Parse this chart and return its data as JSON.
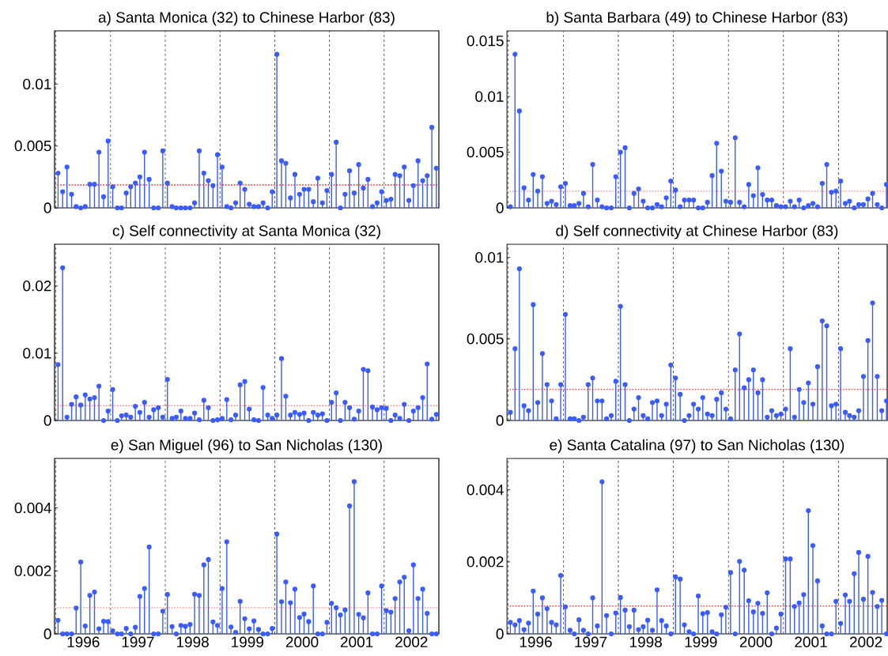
{
  "chart_data": [
    {
      "type": "lollipop",
      "title": "a) Santa Monica (32) to Chinese Harbor (83)",
      "color": "#3a5cff",
      "marker": "circle",
      "tick_labels": "y",
      "x": [
        "1996-01-15",
        "1996-02-15",
        "1996-03-15",
        "1996-04-15",
        "1996-05-15",
        "1996-06-15",
        "1996-07-15",
        "1996-08-15",
        "1996-09-15",
        "1996-10-15",
        "1996-11-15",
        "1996-12-15",
        "1997-01-15",
        "1997-02-15",
        "1997-03-15",
        "1997-04-15",
        "1997-05-15",
        "1997-06-15",
        "1997-07-15",
        "1997-08-15",
        "1997-09-15",
        "1997-10-15",
        "1997-11-15",
        "1997-12-15",
        "1998-01-15",
        "1998-02-15",
        "1998-03-15",
        "1998-04-15",
        "1998-05-15",
        "1998-06-15",
        "1998-07-15",
        "1998-08-15",
        "1998-09-15",
        "1998-10-15",
        "1998-11-15",
        "1998-12-15",
        "1999-01-15",
        "1999-02-15",
        "1999-03-15",
        "1999-04-15",
        "1999-05-15",
        "1999-06-15",
        "1999-07-15",
        "1999-08-15",
        "1999-09-15",
        "1999-10-15",
        "1999-11-15",
        "1999-12-15",
        "2000-01-15",
        "2000-02-15",
        "2000-03-15",
        "2000-04-15",
        "2000-05-15",
        "2000-06-15",
        "2000-07-15",
        "2000-08-15",
        "2000-09-15",
        "2000-10-15",
        "2000-11-15",
        "2000-12-15",
        "2001-01-15",
        "2001-02-15",
        "2001-03-15",
        "2001-04-15",
        "2001-05-15",
        "2001-06-15",
        "2001-07-15",
        "2001-08-15",
        "2001-09-15",
        "2001-10-15",
        "2001-11-15",
        "2001-12-15",
        "2002-01-15",
        "2002-02-15",
        "2002-03-15",
        "2002-04-15",
        "2002-05-15",
        "2002-06-15",
        "2002-07-15",
        "2002-08-15",
        "2002-09-15",
        "2002-10-15",
        "2002-11-15",
        "2002-12-15"
      ],
      "values": [
        0.0028,
        0.0013,
        0.0033,
        0.0011,
        0.0001,
        0,
        0.0001,
        0.0019,
        0.0019,
        0.0045,
        0.0009,
        0.0054,
        0.0017,
        0,
        0,
        0.0012,
        0.0017,
        0.002,
        0.0025,
        0.0045,
        0.0023,
        0,
        0,
        0.0046,
        0.002,
        0.0001,
        0,
        0,
        0,
        0,
        0.0004,
        0.0046,
        0.0028,
        0.0022,
        0.0018,
        0.0043,
        0.0033,
        0.0001,
        0,
        0.0004,
        0.002,
        0.0015,
        0.0003,
        0.0001,
        0.0001,
        0.0004,
        0,
        0.0013,
        0.0124,
        0.0038,
        0.0036,
        0.0008,
        0.0027,
        0.0011,
        0.0015,
        0.0015,
        0.0005,
        0.0024,
        0.0004,
        0.0014,
        0.0027,
        0.0053,
        0,
        0.0011,
        0.003,
        0.0012,
        0.0035,
        0.0016,
        0.0023,
        0.0001,
        0.0004,
        0.0013,
        0.0006,
        0.0007,
        0.0027,
        0.0026,
        0.0033,
        0.0006,
        0.0018,
        0.0038,
        0.0022,
        0.0026,
        0.0065,
        0.0032
      ],
      "xlim": [
        "1995-12-23",
        "2003-01-01"
      ],
      "ylim": [
        0,
        0.0143
      ],
      "yticks": [
        0,
        0.005,
        0.01
      ],
      "ref_lines": [
        {
          "axis": "x",
          "value": "1996-01-01",
          "color": "#555555",
          "line_style": "dashed"
        },
        {
          "axis": "x",
          "value": "1997-01-01",
          "color": "#555555",
          "line_style": "dashed"
        },
        {
          "axis": "x",
          "value": "1998-01-01",
          "color": "#555555",
          "line_style": "dashed"
        },
        {
          "axis": "x",
          "value": "1999-01-01",
          "color": "#555555",
          "line_style": "dashed"
        },
        {
          "axis": "x",
          "value": "2000-01-01",
          "color": "#555555",
          "line_style": "dashed"
        },
        {
          "axis": "x",
          "value": "2001-01-01",
          "color": "#555555",
          "line_style": "dashed"
        },
        {
          "axis": "x",
          "value": "2002-01-01",
          "color": "#555555",
          "line_style": "dashed"
        },
        {
          "axis": "y",
          "value": 0.00185,
          "color": "#ff1a1a",
          "line_style": "dotted"
        }
      ]
    },
    {
      "type": "lollipop",
      "title": "b) Santa Barbara (49) to Chinese Harbor (83)",
      "color": "#3a5cff",
      "marker": "circle",
      "tick_labels": "y",
      "x": [
        "1996-01-15",
        "1996-02-15",
        "1996-03-15",
        "1996-04-15",
        "1996-05-15",
        "1996-06-15",
        "1996-07-15",
        "1996-08-15",
        "1996-09-15",
        "1996-10-15",
        "1996-11-15",
        "1996-12-15",
        "1997-01-15",
        "1997-02-15",
        "1997-03-15",
        "1997-04-15",
        "1997-05-15",
        "1997-06-15",
        "1997-07-15",
        "1997-08-15",
        "1997-09-15",
        "1997-10-15",
        "1997-11-15",
        "1997-12-15",
        "1998-01-15",
        "1998-02-15",
        "1998-03-15",
        "1998-04-15",
        "1998-05-15",
        "1998-06-15",
        "1998-07-15",
        "1998-08-15",
        "1998-09-15",
        "1998-10-15",
        "1998-11-15",
        "1998-12-15",
        "1999-01-15",
        "1999-02-15",
        "1999-03-15",
        "1999-04-15",
        "1999-05-15",
        "1999-06-15",
        "1999-07-15",
        "1999-08-15",
        "1999-09-15",
        "1999-10-15",
        "1999-11-15",
        "1999-12-15",
        "2000-01-15",
        "2000-02-15",
        "2000-03-15",
        "2000-04-15",
        "2000-05-15",
        "2000-06-15",
        "2000-07-15",
        "2000-08-15",
        "2000-09-15",
        "2000-10-15",
        "2000-11-15",
        "2000-12-15",
        "2001-01-15",
        "2001-02-15",
        "2001-03-15",
        "2001-04-15",
        "2001-05-15",
        "2001-06-15",
        "2001-07-15",
        "2001-08-15",
        "2001-09-15",
        "2001-10-15",
        "2001-11-15",
        "2001-12-15",
        "2002-01-15",
        "2002-02-15",
        "2002-03-15",
        "2002-04-15",
        "2002-05-15",
        "2002-06-15",
        "2002-07-15",
        "2002-08-15",
        "2002-09-15",
        "2002-10-15",
        "2002-11-15"
      ],
      "values": [
        0.0001,
        0.0138,
        0.0087,
        0.0018,
        0.0007,
        0.003,
        0.0015,
        0.0028,
        0.0004,
        0.0006,
        0.0003,
        0.0019,
        0.0022,
        0.0002,
        0.0002,
        0.0004,
        0.0013,
        0.0001,
        0.0039,
        0.0007,
        0.0001,
        0,
        0,
        0.0028,
        0.005,
        0.0054,
        0,
        0.0013,
        0.0017,
        0.0006,
        0,
        0,
        0.0003,
        0.0001,
        0.0009,
        0.0024,
        0.0016,
        0.0001,
        0.0007,
        0.0007,
        0.0007,
        0,
        0,
        0.0005,
        0.0029,
        0.0058,
        0.0033,
        0.0006,
        0.0005,
        0.0063,
        0.0005,
        0.0001,
        0.0021,
        0.0011,
        0.0036,
        0.0012,
        0.0007,
        0.0007,
        0.0002,
        0.0001,
        0.0001,
        0.0006,
        0.0001,
        0.0007,
        0,
        0.0002,
        0.0004,
        0.0001,
        0.0022,
        0.0039,
        0.0014,
        0.0015,
        0.0024,
        0.0004,
        0.0006,
        0,
        0.0003,
        0.0003,
        0.0008,
        0.0013,
        0.0003,
        0,
        0.0021
      ],
      "xlim": [
        "1995-12-23",
        "2002-11-20"
      ],
      "ylim": [
        0,
        0.0159
      ],
      "yticks": [
        0,
        0.005,
        0.01,
        0.015
      ],
      "ref_lines": [
        {
          "axis": "x",
          "value": "1996-01-01",
          "color": "#555555",
          "line_style": "dashed"
        },
        {
          "axis": "x",
          "value": "1997-01-01",
          "color": "#555555",
          "line_style": "dashed"
        },
        {
          "axis": "x",
          "value": "1998-01-01",
          "color": "#555555",
          "line_style": "dashed"
        },
        {
          "axis": "x",
          "value": "1999-01-01",
          "color": "#555555",
          "line_style": "dashed"
        },
        {
          "axis": "x",
          "value": "2000-01-01",
          "color": "#555555",
          "line_style": "dashed"
        },
        {
          "axis": "x",
          "value": "2001-01-01",
          "color": "#555555",
          "line_style": "dashed"
        },
        {
          "axis": "x",
          "value": "2002-01-01",
          "color": "#555555",
          "line_style": "dashed"
        },
        {
          "axis": "y",
          "value": 0.0015,
          "color": "#ffaaaa",
          "line_style": "dotted"
        }
      ]
    },
    {
      "type": "lollipop",
      "title": "c) Self connectivity at Santa Monica (32)",
      "color": "#3a5cff",
      "marker": "circle",
      "tick_labels": "y",
      "x": [
        "1996-01-15",
        "1996-02-15",
        "1996-03-15",
        "1996-04-15",
        "1996-05-15",
        "1996-06-15",
        "1996-07-15",
        "1996-08-15",
        "1996-09-15",
        "1996-10-15",
        "1996-11-15",
        "1996-12-15",
        "1997-01-15",
        "1997-02-15",
        "1997-03-15",
        "1997-04-15",
        "1997-05-15",
        "1997-06-15",
        "1997-07-15",
        "1997-08-15",
        "1997-09-15",
        "1997-10-15",
        "1997-11-15",
        "1997-12-15",
        "1998-01-15",
        "1998-02-15",
        "1998-03-15",
        "1998-04-15",
        "1998-05-15",
        "1998-06-15",
        "1998-07-15",
        "1998-08-15",
        "1998-09-15",
        "1998-10-15",
        "1998-11-15",
        "1998-12-15",
        "1999-01-15",
        "1999-02-15",
        "1999-03-15",
        "1999-04-15",
        "1999-05-15",
        "1999-06-15",
        "1999-07-15",
        "1999-08-15",
        "1999-09-15",
        "1999-10-15",
        "1999-11-15",
        "1999-12-15",
        "2000-01-15",
        "2000-02-15",
        "2000-03-15",
        "2000-04-15",
        "2000-05-15",
        "2000-06-15",
        "2000-07-15",
        "2000-08-15",
        "2000-09-15",
        "2000-10-15",
        "2000-11-15",
        "2000-12-15",
        "2001-01-15",
        "2001-02-15",
        "2001-03-15",
        "2001-04-15",
        "2001-05-15",
        "2001-06-15",
        "2001-07-15",
        "2001-08-15",
        "2001-09-15",
        "2001-10-15",
        "2001-11-15",
        "2001-12-15",
        "2002-01-15",
        "2002-02-15",
        "2002-03-15",
        "2002-04-15",
        "2002-05-15",
        "2002-06-15",
        "2002-07-15",
        "2002-08-15",
        "2002-09-15",
        "2002-10-15",
        "2002-11-15",
        "2002-12-15"
      ],
      "values": [
        0.0083,
        0.0227,
        0.0005,
        0.0024,
        0.0035,
        0.0023,
        0.0038,
        0.0032,
        0.0034,
        0.0051,
        0,
        0.0014,
        0.0046,
        0,
        0.0007,
        0.0008,
        0.0005,
        0.0021,
        0.0012,
        0.0027,
        0.0005,
        0.0016,
        0.0019,
        0.0005,
        0.0061,
        0.0003,
        0.0005,
        0.0014,
        0.0003,
        0.0003,
        0.0011,
        0.0001,
        0.003,
        0.0019,
        0,
        0.0001,
        0.0003,
        0.0031,
        0.0001,
        0.0008,
        0.0053,
        0.0058,
        0.0017,
        0.0001,
        0,
        0.0049,
        0.0008,
        0.0003,
        0.0008,
        0.0092,
        0.0036,
        0.0008,
        0.0012,
        0.0009,
        0.0011,
        0,
        0.0012,
        0.0008,
        0.001,
        0,
        0.0027,
        0.0041,
        0,
        0.0027,
        0.0019,
        0.0002,
        0.0014,
        0.0076,
        0.0074,
        0.002,
        0.0016,
        0.0019,
        0.0018,
        0,
        0.0008,
        0.0003,
        0.0024,
        0,
        0.0014,
        0.0019,
        0.0034,
        0.0084,
        0.0002,
        0.0009
      ],
      "xlim": [
        "1995-12-23",
        "2003-01-01"
      ],
      "ylim": [
        0,
        0.0262
      ],
      "yticks": [
        0,
        0.01,
        0.02
      ],
      "ref_lines": [
        {
          "axis": "x",
          "value": "1996-01-01",
          "color": "#555555",
          "line_style": "dashed"
        },
        {
          "axis": "x",
          "value": "1997-01-01",
          "color": "#555555",
          "line_style": "dashed"
        },
        {
          "axis": "x",
          "value": "1998-01-01",
          "color": "#555555",
          "line_style": "dashed"
        },
        {
          "axis": "x",
          "value": "1999-01-01",
          "color": "#555555",
          "line_style": "dashed"
        },
        {
          "axis": "x",
          "value": "2000-01-01",
          "color": "#555555",
          "line_style": "dashed"
        },
        {
          "axis": "x",
          "value": "2001-01-01",
          "color": "#555555",
          "line_style": "dashed"
        },
        {
          "axis": "x",
          "value": "2002-01-01",
          "color": "#555555",
          "line_style": "dashed"
        },
        {
          "axis": "y",
          "value": 0.0022,
          "color": "#ff8888",
          "line_style": "dotted"
        }
      ]
    },
    {
      "type": "lollipop",
      "title": "d) Self connectivity at Chinese Harbor (83)",
      "color": "#3a5cff",
      "marker": "circle",
      "tick_labels": "y",
      "x": [
        "1996-01-15",
        "1996-02-15",
        "1996-03-15",
        "1996-04-15",
        "1996-05-15",
        "1996-06-15",
        "1996-07-15",
        "1996-08-15",
        "1996-09-15",
        "1996-10-15",
        "1996-11-15",
        "1996-12-15",
        "1997-01-15",
        "1997-02-15",
        "1997-03-15",
        "1997-04-15",
        "1997-05-15",
        "1997-06-15",
        "1997-07-15",
        "1997-08-15",
        "1997-09-15",
        "1997-10-15",
        "1997-11-15",
        "1997-12-15",
        "1998-01-15",
        "1998-02-15",
        "1998-03-15",
        "1998-04-15",
        "1998-05-15",
        "1998-06-15",
        "1998-07-15",
        "1998-08-15",
        "1998-09-15",
        "1998-10-15",
        "1998-11-15",
        "1998-12-15",
        "1999-01-15",
        "1999-02-15",
        "1999-03-15",
        "1999-04-15",
        "1999-05-15",
        "1999-06-15",
        "1999-07-15",
        "1999-08-15",
        "1999-09-15",
        "1999-10-15",
        "1999-11-15",
        "1999-12-15",
        "2000-01-15",
        "2000-02-15",
        "2000-03-15",
        "2000-04-15",
        "2000-05-15",
        "2000-06-15",
        "2000-07-15",
        "2000-08-15",
        "2000-09-15",
        "2000-10-15",
        "2000-11-15",
        "2000-12-15",
        "2001-01-15",
        "2001-02-15",
        "2001-03-15",
        "2001-04-15",
        "2001-05-15",
        "2001-06-15",
        "2001-07-15",
        "2001-08-15",
        "2001-09-15",
        "2001-10-15",
        "2001-11-15",
        "2001-12-15",
        "2002-01-15",
        "2002-02-15",
        "2002-03-15",
        "2002-04-15",
        "2002-05-15",
        "2002-06-15",
        "2002-07-15",
        "2002-08-15",
        "2002-09-15",
        "2002-10-15",
        "2002-11-15"
      ],
      "values": [
        0.0005,
        0.0044,
        0.0093,
        0.0009,
        0.0006,
        0.0071,
        0.0011,
        0.0041,
        0.0022,
        0.0012,
        0.0001,
        0.0022,
        0.0065,
        0.0001,
        0.0001,
        0,
        0.0002,
        0.0022,
        0.0026,
        0.0012,
        0.0012,
        0.0001,
        0.0003,
        0.0024,
        0.007,
        0.0022,
        0,
        0.0007,
        0.0014,
        0.0003,
        0.0001,
        0.0011,
        0.0012,
        0.0003,
        0.001,
        0.0034,
        0.0026,
        0.0016,
        0,
        0.0003,
        0.001,
        0.0007,
        0.0014,
        0.0004,
        0.0003,
        0.0013,
        0.0017,
        0.0007,
        0.0001,
        0.0031,
        0.0053,
        0.002,
        0.0025,
        0.0031,
        0.0017,
        0.0025,
        0.0002,
        0.0006,
        0.0003,
        0.0004,
        0.0007,
        0.0044,
        0.0002,
        0.0019,
        0.0011,
        0.0023,
        0.001,
        0.0033,
        0.0061,
        0.0058,
        0.0009,
        0.001,
        0.0044,
        0.0005,
        0.0003,
        0.0002,
        0.0006,
        0.0027,
        0.0049,
        0.0072,
        0.0027,
        0.0006,
        0.0012
      ],
      "xlim": [
        "1995-12-23",
        "2002-11-20"
      ],
      "ylim": [
        0,
        0.0108
      ],
      "yticks": [
        0,
        0.005,
        0.01
      ],
      "ref_lines": [
        {
          "axis": "x",
          "value": "1996-01-01",
          "color": "#555555",
          "line_style": "dashed"
        },
        {
          "axis": "x",
          "value": "1997-01-01",
          "color": "#555555",
          "line_style": "dashed"
        },
        {
          "axis": "x",
          "value": "1998-01-01",
          "color": "#555555",
          "line_style": "dashed"
        },
        {
          "axis": "x",
          "value": "1999-01-01",
          "color": "#555555",
          "line_style": "dashed"
        },
        {
          "axis": "x",
          "value": "2000-01-01",
          "color": "#555555",
          "line_style": "dashed"
        },
        {
          "axis": "x",
          "value": "2001-01-01",
          "color": "#555555",
          "line_style": "dashed"
        },
        {
          "axis": "x",
          "value": "2002-01-01",
          "color": "#555555",
          "line_style": "dashed"
        },
        {
          "axis": "y",
          "value": 0.0019,
          "color": "#ff4444",
          "line_style": "dotted"
        }
      ]
    },
    {
      "type": "lollipop",
      "title": "e) San Miguel (96) to San Nicholas (130)",
      "color": "#3a5cff",
      "marker": "circle",
      "x": [
        "1996-01-15",
        "1996-02-15",
        "1996-03-15",
        "1996-04-15",
        "1996-05-15",
        "1996-06-15",
        "1996-07-15",
        "1996-08-15",
        "1996-09-15",
        "1996-10-15",
        "1996-11-15",
        "1996-12-15",
        "1997-01-15",
        "1997-02-15",
        "1997-03-15",
        "1997-04-15",
        "1997-05-15",
        "1997-06-15",
        "1997-07-15",
        "1997-08-15",
        "1997-09-15",
        "1997-10-15",
        "1997-11-15",
        "1997-12-15",
        "1998-01-15",
        "1998-02-15",
        "1998-03-15",
        "1998-04-15",
        "1998-05-15",
        "1998-06-15",
        "1998-07-15",
        "1998-08-15",
        "1998-09-15",
        "1998-10-15",
        "1998-11-15",
        "1998-12-15",
        "1999-01-15",
        "1999-02-15",
        "1999-03-15",
        "1999-04-15",
        "1999-05-15",
        "1999-06-15",
        "1999-07-15",
        "1999-08-15",
        "1999-09-15",
        "1999-10-15",
        "1999-11-15",
        "1999-12-15",
        "2000-01-15",
        "2000-02-15",
        "2000-03-15",
        "2000-04-15",
        "2000-05-15",
        "2000-06-15",
        "2000-07-15",
        "2000-08-15",
        "2000-09-15",
        "2000-10-15",
        "2000-11-15",
        "2000-12-15",
        "2001-01-15",
        "2001-02-15",
        "2001-03-15",
        "2001-04-15",
        "2001-05-15",
        "2001-06-15",
        "2001-07-15",
        "2001-08-15",
        "2001-09-15",
        "2001-10-15",
        "2001-11-15",
        "2001-12-15",
        "2002-01-15",
        "2002-02-15",
        "2002-03-15",
        "2002-04-15",
        "2002-05-15",
        "2002-06-15",
        "2002-07-15",
        "2002-08-15",
        "2002-09-15",
        "2002-10-15",
        "2002-11-15",
        "2002-12-15"
      ],
      "values": [
        0.00043,
        0,
        0,
        0,
        0.00082,
        0.00228,
        0.00025,
        0.00122,
        0.00133,
        0.00016,
        0.0004,
        0.00039,
        0.0001,
        0,
        0,
        0.00017,
        0,
        0.00021,
        0.00119,
        0.00144,
        0.00276,
        0,
        0,
        0.00072,
        0.00125,
        0.00023,
        0,
        0.00027,
        0.00024,
        0.0003,
        0.00126,
        0.00122,
        0.00219,
        0.00236,
        0.00038,
        0.00027,
        0.00144,
        0.00292,
        0.00022,
        5e-05,
        0.00103,
        0.00048,
        0.00016,
        0.00041,
        0.00014,
        0,
        0,
        0.00017,
        0.00317,
        0.00102,
        0.00165,
        0.00099,
        0.00142,
        0.00052,
        0.00063,
        0.00039,
        0.00152,
        0,
        0,
        0.00037,
        0.00097,
        0.00083,
        0.0006,
        0.00076,
        0.00406,
        0.00483,
        0.00062,
        0.00051,
        0.0013,
        0,
        0,
        0.00152,
        0.00074,
        0.00069,
        0.00112,
        0.00165,
        0.0018,
        0.0001,
        0.00219,
        0.00112,
        0.00142,
        0.00065,
        0,
        0
      ],
      "xlim": [
        "1995-12-23",
        "2003-01-01"
      ],
      "ylim": [
        0,
        0.00557
      ],
      "yticks": [
        0,
        0.002,
        0.004
      ],
      "xticks": [
        {
          "value": "1996-07-02",
          "label": "1996"
        },
        {
          "value": "1997-07-02",
          "label": "1997"
        },
        {
          "value": "1998-07-02",
          "label": "1998"
        },
        {
          "value": "1999-07-02",
          "label": "1999"
        },
        {
          "value": "2000-07-02",
          "label": "2000"
        },
        {
          "value": "2001-07-02",
          "label": "2001"
        },
        {
          "value": "2002-07-02",
          "label": "2002"
        }
      ],
      "ref_lines": [
        {
          "axis": "x",
          "value": "1996-01-01",
          "color": "#555555",
          "line_style": "dashed"
        },
        {
          "axis": "x",
          "value": "1997-01-01",
          "color": "#555555",
          "line_style": "dashed"
        },
        {
          "axis": "x",
          "value": "1998-01-01",
          "color": "#555555",
          "line_style": "dashed"
        },
        {
          "axis": "x",
          "value": "1999-01-01",
          "color": "#555555",
          "line_style": "dashed"
        },
        {
          "axis": "x",
          "value": "2000-01-01",
          "color": "#555555",
          "line_style": "dashed"
        },
        {
          "axis": "x",
          "value": "2001-01-01",
          "color": "#555555",
          "line_style": "dashed"
        },
        {
          "axis": "x",
          "value": "2002-01-01",
          "color": "#555555",
          "line_style": "dashed"
        },
        {
          "axis": "y",
          "value": 0.00083,
          "color": "#ffaaaa",
          "line_style": "dotted"
        }
      ]
    },
    {
      "type": "lollipop",
      "title": "e) Santa Catalina (97) to San Nicholas (130)",
      "color": "#3a5cff",
      "marker": "circle",
      "x": [
        "1996-01-15",
        "1996-02-15",
        "1996-03-15",
        "1996-04-15",
        "1996-05-15",
        "1996-06-15",
        "1996-07-15",
        "1996-08-15",
        "1996-09-15",
        "1996-10-15",
        "1996-11-15",
        "1996-12-15",
        "1997-01-15",
        "1997-02-15",
        "1997-03-15",
        "1997-04-15",
        "1997-05-15",
        "1997-06-15",
        "1997-07-15",
        "1997-08-15",
        "1997-09-15",
        "1997-10-15",
        "1997-11-15",
        "1997-12-15",
        "1998-01-15",
        "1998-02-15",
        "1998-03-15",
        "1998-04-15",
        "1998-05-15",
        "1998-06-15",
        "1998-07-15",
        "1998-08-15",
        "1998-09-15",
        "1998-10-15",
        "1998-11-15",
        "1998-12-15",
        "1999-01-15",
        "1999-02-15",
        "1999-03-15",
        "1999-04-15",
        "1999-05-15",
        "1999-06-15",
        "1999-07-15",
        "1999-08-15",
        "1999-09-15",
        "1999-10-15",
        "1999-11-15",
        "1999-12-15",
        "2000-01-15",
        "2000-02-15",
        "2000-03-15",
        "2000-04-15",
        "2000-05-15",
        "2000-06-15",
        "2000-07-15",
        "2000-08-15",
        "2000-09-15",
        "2000-10-15",
        "2000-11-15",
        "2000-12-15",
        "2001-01-15",
        "2001-02-15",
        "2001-03-15",
        "2001-04-15",
        "2001-05-15",
        "2001-06-15",
        "2001-07-15",
        "2001-08-15",
        "2001-09-15",
        "2001-10-15",
        "2001-11-15",
        "2001-12-15",
        "2002-01-15",
        "2002-02-15",
        "2002-03-15",
        "2002-04-15",
        "2002-05-15",
        "2002-06-15",
        "2002-07-15",
        "2002-08-15",
        "2002-09-15",
        "2002-10-15",
        "2002-11-15"
      ],
      "values": [
        0.00032,
        0.00025,
        0.00037,
        0.00012,
        0.0003,
        0.00119,
        0.00055,
        0.001,
        0.0007,
        0.00032,
        0.00025,
        0.00162,
        0.00075,
        0.0001,
        0,
        0.00039,
        0.0001,
        0,
        0.001,
        0.00022,
        0.00422,
        0.00051,
        0,
        0.00058,
        0.00101,
        0.00066,
        0.0002,
        0.00066,
        0.00012,
        0.0002,
        0.00038,
        0.0001,
        0.00122,
        0.00037,
        0.00022,
        0,
        0.00158,
        0.00152,
        0.00025,
        6e-05,
        0,
        0.00105,
        0.00056,
        0.00059,
        6e-05,
        0,
        0.00053,
        0.00074,
        0.0017,
        0,
        0.00201,
        0.00177,
        0.00092,
        0.00061,
        0.00085,
        0.00057,
        0.00114,
        0,
        0.00016,
        0.00055,
        0.00208,
        0.00208,
        0.00076,
        0.00086,
        0.00109,
        0.00342,
        0.00245,
        0.00147,
        0.00022,
        0,
        0,
        0.0009,
        0.00029,
        0.00108,
        0.0009,
        0.00167,
        0.00226,
        0.00096,
        0.00215,
        0.00115,
        0.00076,
        0.00093,
        0
      ],
      "xlim": [
        "1995-12-23",
        "2002-11-20"
      ],
      "ylim": [
        0,
        0.00486
      ],
      "yticks": [
        0,
        0.002,
        0.004
      ],
      "xticks": [
        {
          "value": "1996-07-02",
          "label": "1996"
        },
        {
          "value": "1997-07-02",
          "label": "1997"
        },
        {
          "value": "1998-07-02",
          "label": "1998"
        },
        {
          "value": "1999-07-02",
          "label": "1999"
        },
        {
          "value": "2000-07-02",
          "label": "2000"
        },
        {
          "value": "2001-07-02",
          "label": "2001"
        },
        {
          "value": "2002-07-02",
          "label": "2002"
        }
      ],
      "ref_lines": [
        {
          "axis": "x",
          "value": "1996-01-01",
          "color": "#555555",
          "line_style": "dashed"
        },
        {
          "axis": "x",
          "value": "1997-01-01",
          "color": "#555555",
          "line_style": "dashed"
        },
        {
          "axis": "x",
          "value": "1998-01-01",
          "color": "#555555",
          "line_style": "dashed"
        },
        {
          "axis": "x",
          "value": "1999-01-01",
          "color": "#555555",
          "line_style": "dashed"
        },
        {
          "axis": "x",
          "value": "2000-01-01",
          "color": "#555555",
          "line_style": "dashed"
        },
        {
          "axis": "x",
          "value": "2001-01-01",
          "color": "#555555",
          "line_style": "dashed"
        },
        {
          "axis": "x",
          "value": "2002-01-01",
          "color": "#555555",
          "line_style": "dashed"
        },
        {
          "axis": "y",
          "value": 0.00077,
          "color": "#ff4444",
          "line_style": "dotted"
        }
      ]
    }
  ]
}
